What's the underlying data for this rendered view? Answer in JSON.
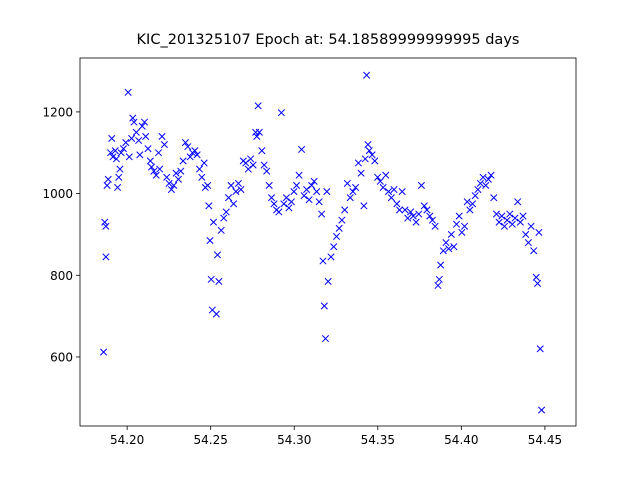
{
  "chart_data": {
    "type": "scatter",
    "title": "KIC_201325107 Epoch at: 54.18589999999995 days",
    "color": "#0000ff",
    "marker": "x",
    "xlim": [
      54.1718,
      54.4686
    ],
    "ylim": [
      431,
      1332
    ],
    "xticks": [
      {
        "value": 54.2,
        "label": "54.20"
      },
      54.25,
      {
        "value": 54.3,
        "label": "54.30"
      },
      54.35,
      {
        "value": 54.4,
        "label": "54.40"
      },
      54.45
    ],
    "yticks": [
      600,
      800,
      1000,
      1200
    ],
    "x": [
      54.1859,
      54.1866,
      54.1873,
      54.1873,
      54.188,
      54.1887,
      54.1901,
      54.1908,
      54.1915,
      54.1929,
      54.1936,
      54.1943,
      54.195,
      54.1957,
      54.1964,
      54.1978,
      54.1992,
      54.2006,
      54.2013,
      54.2027,
      54.2034,
      54.2041,
      54.2055,
      54.2069,
      54.2076,
      54.209,
      54.2104,
      54.2111,
      54.2125,
      54.2139,
      54.2146,
      54.216,
      54.2174,
      54.2188,
      54.2195,
      54.2209,
      54.2223,
      54.2237,
      54.2251,
      54.2265,
      54.2279,
      54.2293,
      54.2307,
      54.2321,
      54.2335,
      54.2349,
      54.2363,
      54.2377,
      54.2391,
      54.2405,
      54.2419,
      54.2433,
      54.2447,
      54.2461,
      54.2468,
      54.2482,
      54.2489,
      54.2496,
      54.2503,
      54.251,
      54.2517,
      54.2534,
      54.2541,
      54.2549,
      54.2563,
      54.2578,
      54.2593,
      54.2607,
      54.2622,
      54.2637,
      54.2651,
      54.2666,
      54.2681,
      54.2695,
      54.271,
      54.2725,
      54.2739,
      54.2754,
      54.2769,
      54.2776,
      54.2784,
      54.2791,
      54.2806,
      54.282,
      54.2835,
      54.285,
      54.2864,
      54.2879,
      54.2894,
      54.2908,
      54.2923,
      54.2938,
      54.2953,
      54.2968,
      54.2983,
      54.2998,
      54.3014,
      54.3029,
      54.3044,
      54.3059,
      54.3074,
      54.3089,
      54.3104,
      54.3119,
      54.3134,
      54.3149,
      54.3164,
      54.3172,
      54.318,
      54.3187,
      54.3195,
      54.3203,
      54.322,
      54.3236,
      54.3253,
      54.3269,
      54.3285,
      54.3302,
      54.3318,
      54.3335,
      54.3351,
      54.3367,
      54.3384,
      54.34,
      54.3417,
      54.3425,
      54.3433,
      54.3441,
      54.3449,
      54.3466,
      54.3482,
      54.3499,
      54.3515,
      54.3532,
      54.3548,
      54.3564,
      54.3581,
      54.3597,
      54.3614,
      54.363,
      54.3646,
      54.3663,
      54.3679,
      54.3696,
      54.3712,
      54.3729,
      54.3745,
      54.3761,
      54.3778,
      54.3794,
      54.3811,
      54.3827,
      54.3843,
      54.386,
      54.3868,
      54.3876,
      54.3892,
      54.3908,
      54.3924,
      54.394,
      54.3955,
      54.3971,
      54.3987,
      54.4003,
      54.4019,
      54.4035,
      54.4051,
      54.4067,
      54.4083,
      54.4099,
      54.4114,
      54.413,
      54.4146,
      54.4162,
      54.4178,
      54.4194,
      54.421,
      54.4226,
      54.4242,
      54.4258,
      54.4274,
      54.429,
      54.4305,
      54.4321,
      54.4337,
      54.4353,
      54.4369,
      54.4385,
      54.4401,
      54.4417,
      54.4433,
      54.4448,
      54.4456,
      54.4464,
      54.4472,
      54.448
    ],
    "values": [
      612,
      930,
      920,
      845,
      1020,
      1035,
      1100,
      1135,
      1090,
      1105,
      1085,
      1015,
      1040,
      1060,
      1100,
      1110,
      1125,
      1248,
      1090,
      1135,
      1185,
      1175,
      1150,
      1130,
      1095,
      1165,
      1175,
      1140,
      1110,
      1080,
      1065,
      1055,
      1045,
      1100,
      1060,
      1140,
      1120,
      1040,
      1025,
      1010,
      1020,
      1050,
      1035,
      1055,
      1080,
      1125,
      1115,
      1090,
      1100,
      1105,
      1095,
      1060,
      1040,
      1075,
      1015,
      1020,
      970,
      885,
      790,
      715,
      930,
      705,
      850,
      785,
      910,
      940,
      955,
      990,
      1020,
      975,
      1005,
      1025,
      1010,
      1080,
      1075,
      1060,
      1085,
      1070,
      1150,
      1140,
      1215,
      1150,
      1105,
      1070,
      1055,
      1020,
      990,
      975,
      960,
      955,
      1198,
      975,
      990,
      965,
      980,
      1005,
      1020,
      1045,
      1108,
      995,
      1010,
      985,
      1020,
      1030,
      1005,
      980,
      950,
      835,
      725,
      645,
      1005,
      785,
      845,
      870,
      895,
      915,
      935,
      960,
      1025,
      990,
      1005,
      1015,
      1075,
      1050,
      970,
      1085,
      1290,
      1120,
      1105,
      1095,
      1080,
      1040,
      1030,
      1015,
      1045,
      1005,
      990,
      1010,
      975,
      960,
      1005,
      960,
      940,
      955,
      945,
      930,
      950,
      1020,
      970,
      960,
      945,
      935,
      920,
      775,
      790,
      825,
      860,
      880,
      865,
      900,
      870,
      925,
      945,
      905,
      920,
      980,
      960,
      975,
      995,
      1010,
      1025,
      1040,
      1020,
      1035,
      1045,
      990,
      950,
      930,
      945,
      920,
      935,
      950,
      925,
      940,
      980,
      930,
      945,
      900,
      880,
      920,
      860,
      795,
      780,
      905,
      620,
      470
    ]
  }
}
